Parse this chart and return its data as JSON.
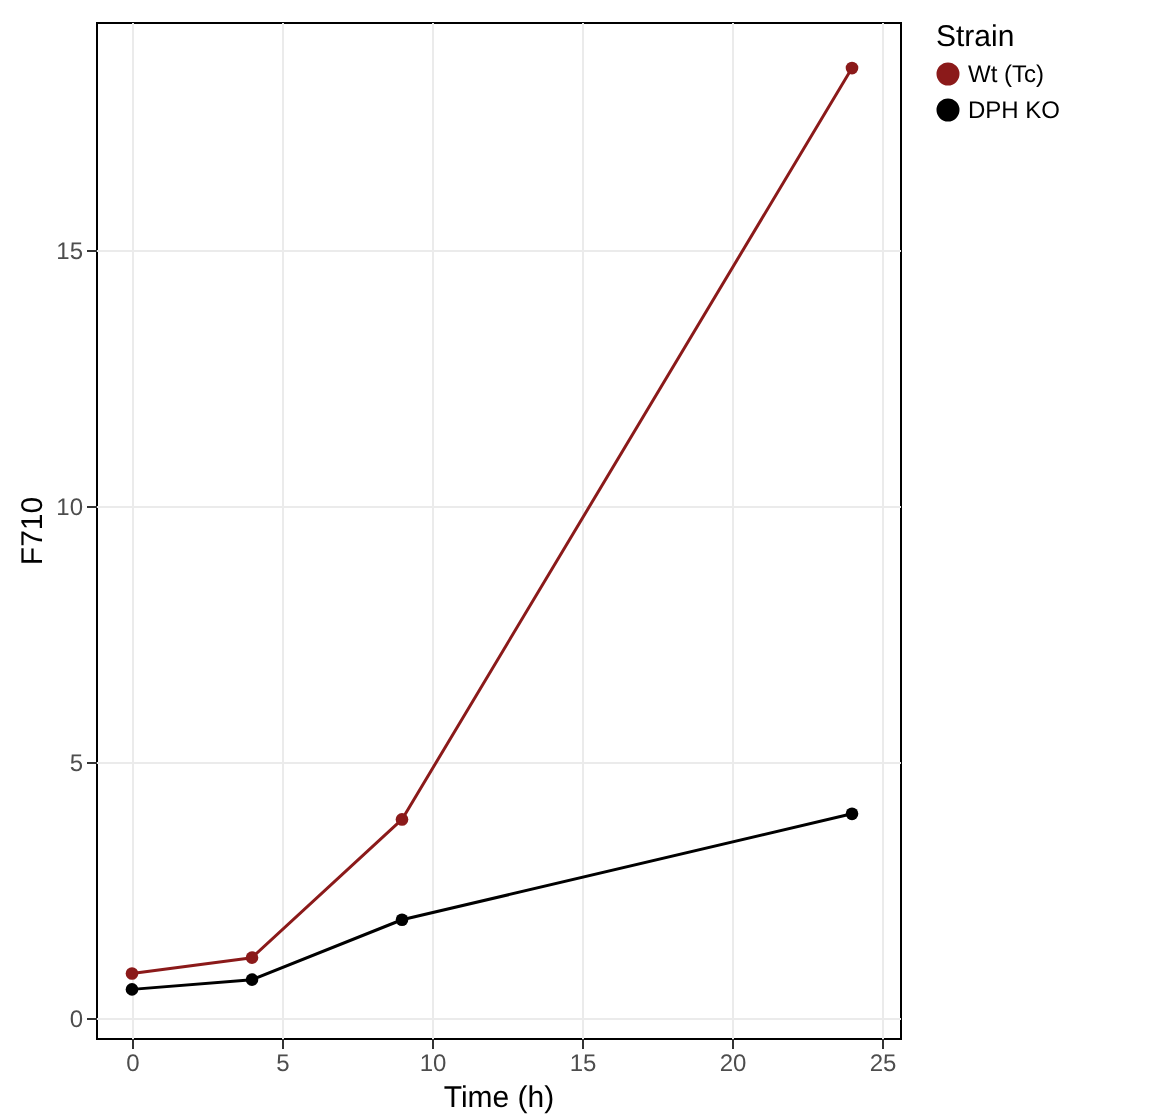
{
  "chart_data": {
    "type": "line",
    "xlabel": "Time (h)",
    "ylabel": "F710",
    "legend_title": "Strain",
    "x": [
      0,
      4,
      9,
      24
    ],
    "series": [
      {
        "name": "Wt (Tc)",
        "color": "#8b1a1a",
        "values": [
          0.86,
          1.17,
          3.87,
          18.55
        ]
      },
      {
        "name": "DPH KO",
        "color": "#000000",
        "values": [
          0.55,
          0.74,
          1.91,
          3.98
        ]
      }
    ],
    "xlim": [
      -1.2,
      25.6
    ],
    "xticks": [
      0,
      5,
      10,
      15,
      20,
      25
    ],
    "ylim": [
      -0.4,
      19.45
    ],
    "yticks": [
      0,
      5,
      10,
      15
    ],
    "grid": true,
    "legend": "right",
    "marker": "circle",
    "line_style": "solid"
  }
}
